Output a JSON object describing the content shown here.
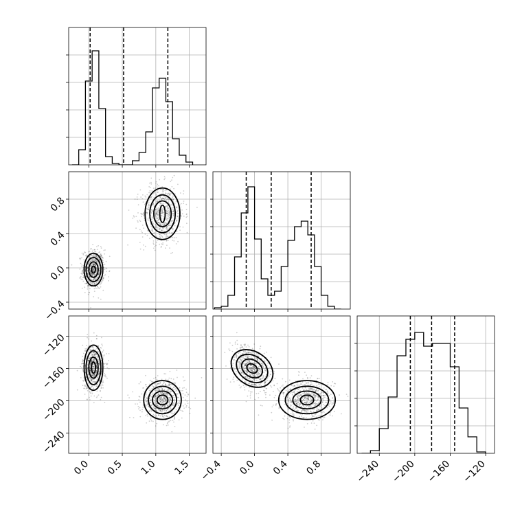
{
  "chart_data": {
    "type": "corner",
    "grid": true,
    "panels": [
      {
        "id": "hist-p0",
        "type": "bar",
        "row": 0,
        "col": 0,
        "xlim": [
          -0.3,
          1.75
        ],
        "ylim": [
          0,
          1
        ],
        "x_bin_width": 0.1,
        "x": [
          -0.2,
          -0.1,
          0.0,
          0.1,
          0.2,
          0.3,
          0.4,
          0.5,
          0.6,
          0.7,
          0.8,
          0.9,
          1.0,
          1.1,
          1.2,
          1.3,
          1.4,
          1.5
        ],
        "values": [
          0.0,
          0.11,
          0.61,
          0.83,
          0.41,
          0.06,
          0.01,
          0.0,
          0.0,
          0.03,
          0.09,
          0.24,
          0.56,
          0.63,
          0.46,
          0.19,
          0.07,
          0.02
        ],
        "quantiles": [
          0.02,
          0.52,
          1.18
        ]
      },
      {
        "id": "hist-p1",
        "type": "bar",
        "row": 1,
        "col": 1,
        "xlim": [
          -0.5,
          1.15
        ],
        "ylim": [
          0,
          1
        ],
        "x_bin_width": 0.08,
        "x": [
          -0.44,
          -0.36,
          -0.28,
          -0.2,
          -0.12,
          -0.04,
          0.04,
          0.12,
          0.2,
          0.28,
          0.36,
          0.44,
          0.52,
          0.6,
          0.68,
          0.76,
          0.84,
          0.92,
          1.0
        ],
        "values": [
          0.01,
          0.02,
          0.1,
          0.38,
          0.7,
          0.89,
          0.51,
          0.22,
          0.1,
          0.13,
          0.31,
          0.5,
          0.6,
          0.64,
          0.54,
          0.31,
          0.1,
          0.02,
          0.0
        ],
        "quantiles": [
          -0.1,
          0.2,
          0.68
        ]
      },
      {
        "id": "hist-p2",
        "type": "bar",
        "row": 2,
        "col": 2,
        "xlim": [
          -265,
          -110
        ],
        "ylim": [
          0,
          1
        ],
        "x_bin_width": 10,
        "x": [
          -255,
          -245,
          -235,
          -225,
          -215,
          -205,
          -195,
          -185,
          -175,
          -165,
          -155,
          -145,
          -135,
          -125
        ],
        "values": [
          0.0,
          0.02,
          0.18,
          0.41,
          0.71,
          0.83,
          0.88,
          0.78,
          0.8,
          0.8,
          0.63,
          0.33,
          0.12,
          0.01
        ],
        "quantiles": [
          -205,
          -181,
          -155
        ]
      },
      {
        "id": "scatter-p0-p1",
        "type": "scatter",
        "row": 1,
        "col": 0,
        "xlim": [
          -0.3,
          1.75
        ],
        "ylim": [
          -0.48,
          1.12
        ],
        "clusters": [
          {
            "mean": [
              0.07,
              -0.02
            ],
            "sd": [
              0.07,
              0.1
            ],
            "weight": 0.5
          },
          {
            "mean": [
              1.1,
              0.63
            ],
            "sd": [
              0.14,
              0.15
            ],
            "weight": 0.5
          }
        ],
        "contours": [
          {
            "center": [
              0.07,
              -0.02
            ],
            "rx": [
              0.14,
              0.11,
              0.07,
              0.03
            ],
            "ry": [
              0.19,
              0.14,
              0.09,
              0.04
            ]
          },
          {
            "center": [
              1.1,
              0.63
            ],
            "rx": [
              0.26,
              0.19,
              0.13,
              0.04
            ],
            "ry": [
              0.3,
              0.22,
              0.15,
              0.1
            ]
          }
        ]
      },
      {
        "id": "scatter-p0-p2",
        "type": "scatter",
        "row": 2,
        "col": 0,
        "xlim": [
          -0.3,
          1.75
        ],
        "ylim": [
          -265,
          -95
        ],
        "clusters": [
          {
            "mean": [
              0.07,
              -159
            ],
            "sd": [
              0.07,
              13
            ],
            "weight": 0.5
          },
          {
            "mean": [
              1.1,
              -199
            ],
            "sd": [
              0.14,
              11
            ],
            "weight": 0.5
          }
        ],
        "contours": [
          {
            "center": [
              0.07,
              -159
            ],
            "rx": [
              0.14,
              0.11,
              0.07,
              0.03
            ],
            "ry": [
              28,
              21,
              13,
              7
            ]
          },
          {
            "center": [
              1.1,
              -199
            ],
            "rx": [
              0.28,
              0.21,
              0.15,
              0.08
            ],
            "ry": [
              24,
              17,
              11,
              6
            ]
          }
        ]
      },
      {
        "id": "scatter-p1-p2",
        "type": "scatter",
        "row": 2,
        "col": 1,
        "xlim": [
          -0.5,
          1.15
        ],
        "ylim": [
          -265,
          -95
        ],
        "clusters": [
          {
            "mean": [
              -0.03,
              -160
            ],
            "sd": [
              0.09,
              13
            ],
            "weight": 0.5,
            "tilt_deg": -55
          },
          {
            "mean": [
              0.63,
              -199
            ],
            "sd": [
              0.14,
              11
            ],
            "weight": 0.5
          }
        ],
        "contours": [
          {
            "center": [
              -0.03,
              -160
            ],
            "rx": [
              0.2,
              0.15,
              0.1,
              0.05
            ],
            "ry": [
              28,
              21,
              14,
              7
            ],
            "tilt_deg": -55
          },
          {
            "center": [
              0.63,
              -199
            ],
            "rx": [
              0.34,
              0.26,
              0.17,
              0.08
            ],
            "ry": [
              24,
              17,
              11,
              6
            ]
          }
        ]
      }
    ],
    "axes": {
      "col0_x_ticks": [
        "0.0",
        "0.5",
        "1.0",
        "1.5"
      ],
      "col0_x_tick_values": [
        0.0,
        0.5,
        1.0,
        1.5
      ],
      "col1_x_ticks": [
        "−0.4",
        "0.0",
        "0.4",
        "0.8"
      ],
      "col1_x_tick_values": [
        -0.4,
        0.0,
        0.4,
        0.8
      ],
      "col2_x_ticks": [
        "−240",
        "−200",
        "−160",
        "−120"
      ],
      "col2_x_tick_values": [
        -240,
        -200,
        -160,
        -120
      ],
      "row1_y_ticks": [
        "−0.4",
        "0.0",
        "0.4",
        "0.8"
      ],
      "row1_y_tick_values": [
        -0.4,
        0.0,
        0.4,
        0.8
      ],
      "row2_y_ticks": [
        "−240",
        "−200",
        "−160",
        "−120"
      ],
      "row2_y_tick_values": [
        -240,
        -200,
        -160,
        -120
      ]
    }
  }
}
